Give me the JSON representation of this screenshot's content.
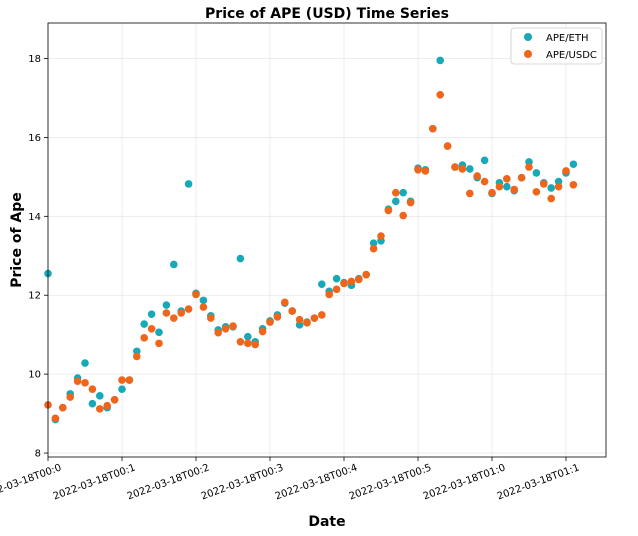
{
  "chart_data": {
    "type": "scatter",
    "title": "Price of APE (USD) Time Series",
    "xlabel": "Date",
    "ylabel": "Price of Ape",
    "ylim": [
      7.9,
      18.9
    ],
    "yticks": [
      8,
      10,
      12,
      14,
      16,
      18
    ],
    "xlim": [
      0,
      70
    ],
    "xticks": [
      0,
      10,
      20,
      30,
      40,
      50,
      60,
      70
    ],
    "xtick_labels": [
      "2022-03-18T00:0",
      "2022-03-18T00:1",
      "2022-03-18T00:2",
      "2022-03-18T00:3",
      "2022-03-18T00:4",
      "2022-03-18T00:5",
      "2022-03-18T01:0",
      "2022-03-18T01:1"
    ],
    "grid": true,
    "legend_position": "top-right",
    "series": [
      {
        "name": "APE/ETH",
        "color": "#17a9b8",
        "points": [
          [
            0,
            12.55
          ],
          [
            1,
            8.85
          ],
          [
            2,
            9.15
          ],
          [
            3,
            9.5
          ],
          [
            4,
            9.9
          ],
          [
            5,
            10.28
          ],
          [
            6,
            9.25
          ],
          [
            7,
            9.45
          ],
          [
            8,
            9.15
          ],
          [
            9,
            9.35
          ],
          [
            10,
            9.62
          ],
          [
            11,
            9.85
          ],
          [
            12,
            10.58
          ],
          [
            13,
            11.27
          ],
          [
            14,
            11.52
          ],
          [
            15,
            11.06
          ],
          [
            16,
            11.75
          ],
          [
            17,
            12.78
          ],
          [
            18,
            11.6
          ],
          [
            19,
            14.82
          ],
          [
            20,
            12.05
          ],
          [
            21,
            11.87
          ],
          [
            22,
            11.48
          ],
          [
            23,
            11.12
          ],
          [
            24,
            11.2
          ],
          [
            25,
            11.2
          ],
          [
            26,
            12.93
          ],
          [
            27,
            10.95
          ],
          [
            28,
            10.82
          ],
          [
            29,
            11.15
          ],
          [
            30,
            11.35
          ],
          [
            31,
            11.5
          ],
          [
            32,
            11.8
          ],
          [
            33,
            11.6
          ],
          [
            34,
            11.25
          ],
          [
            35,
            11.32
          ],
          [
            36,
            11.42
          ],
          [
            37,
            12.28
          ],
          [
            38,
            12.1
          ],
          [
            39,
            12.42
          ],
          [
            40,
            12.32
          ],
          [
            41,
            12.25
          ],
          [
            42,
            12.42
          ],
          [
            43,
            12.52
          ],
          [
            44,
            13.32
          ],
          [
            45,
            13.38
          ],
          [
            46,
            14.18
          ],
          [
            47,
            14.38
          ],
          [
            48,
            14.6
          ],
          [
            49,
            14.38
          ],
          [
            50,
            15.22
          ],
          [
            51,
            15.18
          ],
          [
            52,
            16.22
          ],
          [
            53,
            17.95
          ],
          [
            54,
            15.78
          ],
          [
            55,
            15.25
          ],
          [
            56,
            15.3
          ],
          [
            57,
            15.2
          ],
          [
            58,
            14.98
          ],
          [
            59,
            15.42
          ],
          [
            60,
            14.58
          ],
          [
            61,
            14.85
          ],
          [
            62,
            14.75
          ],
          [
            63,
            14.65
          ],
          [
            64,
            14.98
          ],
          [
            65,
            15.38
          ],
          [
            66,
            15.1
          ],
          [
            67,
            14.85
          ],
          [
            68,
            14.72
          ],
          [
            69,
            14.88
          ],
          [
            70,
            15.1
          ],
          [
            71,
            15.32
          ]
        ]
      },
      {
        "name": "APE/USDC",
        "color": "#f0651a",
        "points": [
          [
            0,
            9.22
          ],
          [
            1,
            8.88
          ],
          [
            2,
            9.15
          ],
          [
            3,
            9.42
          ],
          [
            4,
            9.82
          ],
          [
            5,
            9.78
          ],
          [
            6,
            9.62
          ],
          [
            7,
            9.12
          ],
          [
            8,
            9.2
          ],
          [
            9,
            9.35
          ],
          [
            10,
            9.85
          ],
          [
            11,
            9.85
          ],
          [
            12,
            10.45
          ],
          [
            13,
            10.92
          ],
          [
            14,
            11.15
          ],
          [
            15,
            10.78
          ],
          [
            16,
            11.55
          ],
          [
            17,
            11.42
          ],
          [
            18,
            11.55
          ],
          [
            19,
            11.65
          ],
          [
            20,
            12.02
          ],
          [
            21,
            11.7
          ],
          [
            22,
            11.42
          ],
          [
            23,
            11.05
          ],
          [
            24,
            11.15
          ],
          [
            25,
            11.22
          ],
          [
            26,
            10.82
          ],
          [
            27,
            10.78
          ],
          [
            28,
            10.75
          ],
          [
            29,
            11.08
          ],
          [
            30,
            11.32
          ],
          [
            31,
            11.45
          ],
          [
            32,
            11.82
          ],
          [
            33,
            11.6
          ],
          [
            34,
            11.38
          ],
          [
            35,
            11.3
          ],
          [
            36,
            11.42
          ],
          [
            37,
            11.5
          ],
          [
            38,
            12.02
          ],
          [
            39,
            12.15
          ],
          [
            40,
            12.3
          ],
          [
            41,
            12.35
          ],
          [
            42,
            12.4
          ],
          [
            43,
            12.52
          ],
          [
            44,
            13.18
          ],
          [
            45,
            13.5
          ],
          [
            46,
            14.15
          ],
          [
            47,
            14.6
          ],
          [
            48,
            14.02
          ],
          [
            49,
            14.35
          ],
          [
            50,
            15.18
          ],
          [
            51,
            15.15
          ],
          [
            52,
            16.22
          ],
          [
            53,
            17.08
          ],
          [
            54,
            15.78
          ],
          [
            55,
            15.25
          ],
          [
            56,
            15.2
          ],
          [
            57,
            14.58
          ],
          [
            58,
            15.02
          ],
          [
            59,
            14.88
          ],
          [
            60,
            14.6
          ],
          [
            61,
            14.75
          ],
          [
            62,
            14.95
          ],
          [
            63,
            14.68
          ],
          [
            64,
            14.98
          ],
          [
            65,
            15.25
          ],
          [
            66,
            14.62
          ],
          [
            67,
            14.82
          ],
          [
            68,
            14.45
          ],
          [
            69,
            14.75
          ],
          [
            70,
            15.15
          ],
          [
            71,
            14.8
          ]
        ]
      }
    ]
  }
}
